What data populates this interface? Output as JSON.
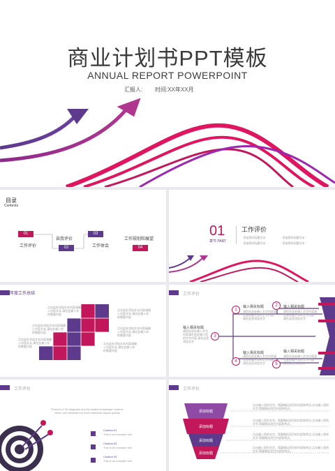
{
  "cover": {
    "title_cn": "商业计划书PPT模板",
    "title_en": "ANNUAL REPORT POWERPOINT",
    "reporter_label": "汇报人:",
    "time_label": "时间:XX年XX月"
  },
  "toc": {
    "title": "目录",
    "subtitle": "Contents",
    "items": [
      {
        "num": "01",
        "label": "工作评价"
      },
      {
        "num": "02",
        "label": "自我评价"
      },
      {
        "num": "03",
        "label": "工作体会"
      },
      {
        "num": "04",
        "label": "工作规划和展望"
      }
    ]
  },
  "section": {
    "num": "01",
    "part_label": "章节 PART",
    "title": "工作评价",
    "bullets": [
      "· 添加您的标题文本",
      "· 添加您的标题文本",
      "· 添加您的标题文本",
      "· 添加您的标题文本"
    ]
  },
  "slide4": {
    "header": "年度工作总结",
    "notes": [
      "点击此处添加文本内容请输入内容文本,请在此输入你的需要内容",
      "点击此处添加文本内容请输入内容文本,请在此输入你的需要内容",
      "点击此处添加文本内容请输入内容文本,请在此输入你的需要内容",
      "点击此处添加文本内容请输入内容文本,请在此输入你的需要内容",
      "点击此处添加文本内容请输入内容文本,请在此输入你的需要内容",
      "点击此处添加文本内容请输入内容文本,请在此输入你的需要内容"
    ]
  },
  "slide5": {
    "header": "工作评价",
    "center_title": "输入相关标题",
    "items": [
      {
        "num": "1",
        "title": "输入相关标题"
      },
      {
        "num": "2",
        "title": "输入相关标题"
      },
      {
        "num": "3",
        "title": "输入相关标题"
      },
      {
        "num": "4",
        "title": "输入相关标题"
      },
      {
        "num": "5",
        "title": "输入相关标题"
      }
    ],
    "body": "请您在此处输入文字内容请在此处输入您的文字内容,请在这里添加文字"
  },
  "slide6": {
    "header": "工作评价",
    "intro": "Product of 2D diagrams and its related knowledge content, which can describe the more attractive layout quickly",
    "items": [
      {
        "title": "Custom 01",
        "desc": "This is an example text"
      },
      {
        "title": "Custom 02",
        "desc": "This is an example text"
      },
      {
        "title": "Custom 03",
        "desc": "This is an example text"
      }
    ]
  },
  "slide7": {
    "header": "工作评价",
    "levels": [
      "添加标题",
      "添加标题",
      "添加标题",
      "添加标题"
    ],
    "note": "点击输入您的文字。简要概括项目的内容和特点,点击输入您的文字,简要概括项目内容和特点。"
  },
  "colors": {
    "magenta": "#c2185b",
    "purple": "#5e3a8c",
    "pink": "#e91e63"
  }
}
